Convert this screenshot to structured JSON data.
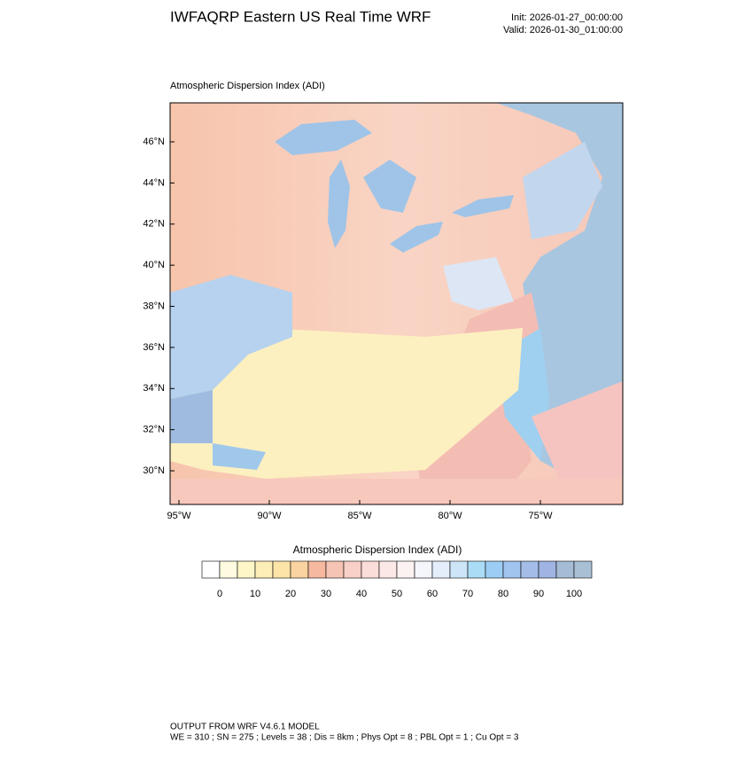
{
  "header": {
    "title": "IWFAQRP Eastern US Real Time WRF",
    "init": "Init: 2026-01-27_00:00:00",
    "valid": "Valid: 2026-01-30_01:00:00"
  },
  "map": {
    "title": "Atmospheric Dispersion Index   (ADI)",
    "lat_ticks": [
      {
        "value": 46,
        "label": "46°N"
      },
      {
        "value": 44,
        "label": "44°N"
      },
      {
        "value": 42,
        "label": "42°N"
      },
      {
        "value": 40,
        "label": "40°N"
      },
      {
        "value": 38,
        "label": "38°N"
      },
      {
        "value": 36,
        "label": "36°N"
      },
      {
        "value": 34,
        "label": "34°N"
      },
      {
        "value": 32,
        "label": "32°N"
      },
      {
        "value": 30,
        "label": "30°N"
      }
    ],
    "lon_ticks": [
      {
        "value": -95,
        "label": "95°W"
      },
      {
        "value": -90,
        "label": "90°W"
      },
      {
        "value": -85,
        "label": "85°W"
      },
      {
        "value": -80,
        "label": "80°W"
      },
      {
        "value": -75,
        "label": "75°W"
      }
    ]
  },
  "colorbar": {
    "title": "Atmospheric Dispersion Index (ADI)",
    "labels": [
      0,
      10,
      20,
      30,
      40,
      50,
      60,
      70,
      80,
      90,
      100
    ],
    "colors": [
      "#ffffff",
      "#fffbe0",
      "#fff6c8",
      "#fdeeb8",
      "#fce3a8",
      "#fbd3a0",
      "#f7b8a0",
      "#f6c4b4",
      "#f8d0c8",
      "#fadcd8",
      "#fce8e6",
      "#fdf2f2",
      "#f4f6fc",
      "#e4eefa",
      "#cce6f8",
      "#aadcf6",
      "#9ccdf4",
      "#a0c4ee",
      "#a4bce8",
      "#9fb4e2",
      "#a6bcd6",
      "#a8bfd4"
    ]
  },
  "footer": {
    "line1": "OUTPUT FROM WRF V4.6.1 MODEL",
    "line2": "WE = 310 ; SN = 275 ; Levels = 38 ; Dis = 8km ; Phys Opt = 8 ; PBL Opt = 1 ; Cu Opt = 3"
  }
}
